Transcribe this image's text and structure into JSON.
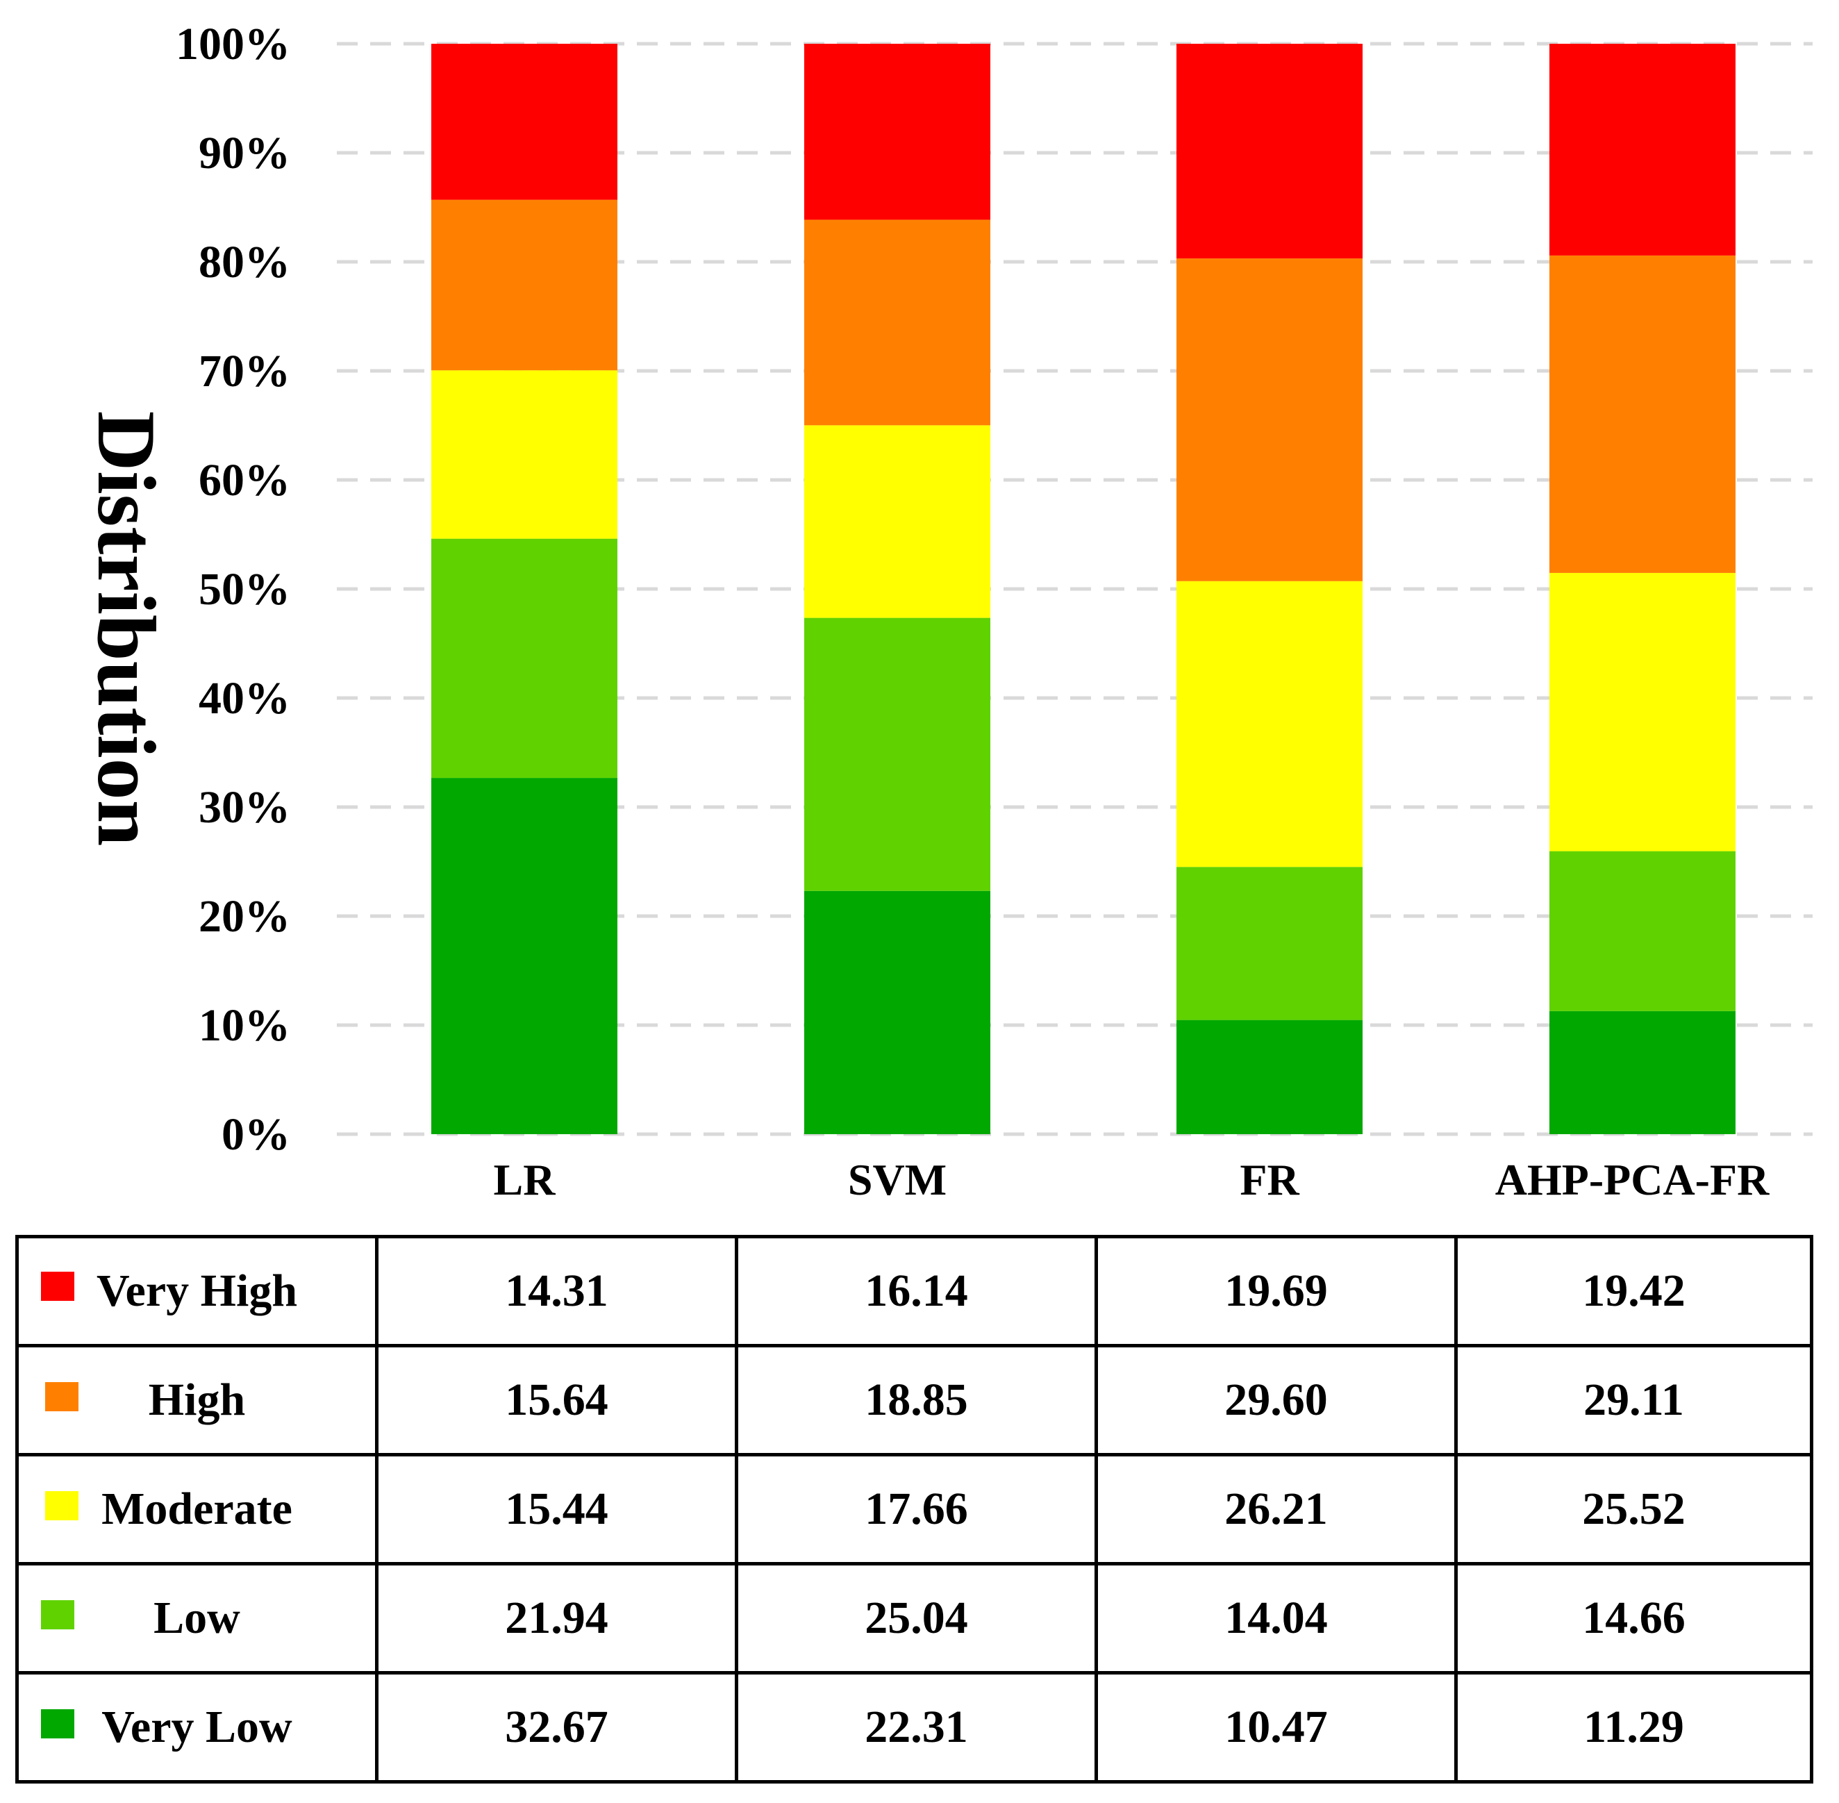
{
  "chart_data": {
    "type": "bar",
    "stacked": true,
    "ylabel": "Distribution",
    "ylim": [
      0,
      100
    ],
    "yticks": [
      "0%",
      "10%",
      "20%",
      "30%",
      "40%",
      "50%",
      "60%",
      "70%",
      "80%",
      "90%",
      "100%"
    ],
    "grid": true,
    "categories": [
      "LR",
      "SVM",
      "FR",
      "AHP-PCA-FR"
    ],
    "series": [
      {
        "name": "Very Low",
        "color": "#00A800",
        "values": [
          32.67,
          22.31,
          10.47,
          11.29
        ]
      },
      {
        "name": "Low",
        "color": "#60D200",
        "values": [
          21.94,
          25.04,
          14.04,
          14.66
        ]
      },
      {
        "name": "Moderate",
        "color": "#FFFF00",
        "values": [
          15.44,
          17.66,
          26.21,
          25.52
        ]
      },
      {
        "name": "High",
        "color": "#FF8000",
        "values": [
          15.64,
          18.85,
          29.6,
          29.11
        ]
      },
      {
        "name": "Very High",
        "color": "#FF0000",
        "values": [
          14.31,
          16.14,
          19.69,
          19.42
        ]
      }
    ]
  },
  "table": {
    "rows": [
      {
        "label": "Very High",
        "color": "#FF0000",
        "cells": [
          "14.31",
          "16.14",
          "19.69",
          "19.42"
        ]
      },
      {
        "label": "High",
        "color": "#FF8000",
        "cells": [
          "15.64",
          "18.85",
          "29.60",
          "29.11"
        ]
      },
      {
        "label": "Moderate",
        "color": "#FFFF00",
        "cells": [
          "15.44",
          "17.66",
          "26.21",
          "25.52"
        ]
      },
      {
        "label": "Low",
        "color": "#60D200",
        "cells": [
          "21.94",
          "25.04",
          "14.04",
          "14.66"
        ]
      },
      {
        "label": "Very Low",
        "color": "#00A800",
        "cells": [
          "32.67",
          "22.31",
          "10.47",
          "11.29"
        ]
      }
    ]
  }
}
